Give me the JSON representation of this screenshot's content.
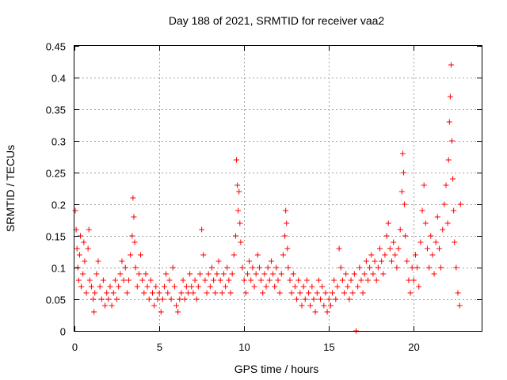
{
  "chart_data": {
    "type": "scatter",
    "title": "Day 188 of 2021, SRMTID for receiver vaa2",
    "xlabel": "GPS time / hours",
    "ylabel": "SRMTID / TECUs",
    "xlim": [
      0,
      24
    ],
    "ylim": [
      0,
      0.45
    ],
    "xticks": [
      0,
      5,
      10,
      15,
      20
    ],
    "yticks": [
      0,
      0.05,
      0.1,
      0.15,
      0.2,
      0.25,
      0.3,
      0.35,
      0.4,
      0.45
    ],
    "ytick_labels": [
      "0",
      "0.05",
      "0.1",
      "0.15",
      "0.2",
      "0.25",
      "0.3",
      "0.35",
      "0.4",
      "0.45"
    ],
    "grid": true,
    "marker": "+",
    "series": [
      {
        "name": "SRMTID",
        "color": "#ff0000",
        "points": [
          [
            0.05,
            0.19
          ],
          [
            0.1,
            0.16
          ],
          [
            0.15,
            0.13
          ],
          [
            0.2,
            0.1
          ],
          [
            0.25,
            0.08
          ],
          [
            0.3,
            0.12
          ],
          [
            0.35,
            0.15
          ],
          [
            0.4,
            0.07
          ],
          [
            0.5,
            0.09
          ],
          [
            0.55,
            0.14
          ],
          [
            0.6,
            0.11
          ],
          [
            0.7,
            0.06
          ],
          [
            0.8,
            0.13
          ],
          [
            0.85,
            0.16
          ],
          [
            0.9,
            0.08
          ],
          [
            1.0,
            0.07
          ],
          [
            1.1,
            0.05
          ],
          [
            1.15,
            0.03
          ],
          [
            1.2,
            0.06
          ],
          [
            1.3,
            0.09
          ],
          [
            1.4,
            0.11
          ],
          [
            1.5,
            0.07
          ],
          [
            1.6,
            0.05
          ],
          [
            1.7,
            0.08
          ],
          [
            1.8,
            0.04
          ],
          [
            1.9,
            0.06
          ],
          [
            2.0,
            0.05
          ],
          [
            2.1,
            0.07
          ],
          [
            2.2,
            0.04
          ],
          [
            2.3,
            0.06
          ],
          [
            2.4,
            0.08
          ],
          [
            2.5,
            0.05
          ],
          [
            2.6,
            0.07
          ],
          [
            2.7,
            0.09
          ],
          [
            2.8,
            0.11
          ],
          [
            2.9,
            0.08
          ],
          [
            3.0,
            0.1
          ],
          [
            3.1,
            0.06
          ],
          [
            3.2,
            0.08
          ],
          [
            3.3,
            0.12
          ],
          [
            3.4,
            0.15
          ],
          [
            3.45,
            0.21
          ],
          [
            3.5,
            0.18
          ],
          [
            3.55,
            0.14
          ],
          [
            3.6,
            0.1
          ],
          [
            3.7,
            0.07
          ],
          [
            3.8,
            0.09
          ],
          [
            3.9,
            0.12
          ],
          [
            4.0,
            0.08
          ],
          [
            4.1,
            0.06
          ],
          [
            4.2,
            0.09
          ],
          [
            4.3,
            0.07
          ],
          [
            4.4,
            0.05
          ],
          [
            4.5,
            0.08
          ],
          [
            4.6,
            0.06
          ],
          [
            4.7,
            0.04
          ],
          [
            4.8,
            0.07
          ],
          [
            4.9,
            0.05
          ],
          [
            5.0,
            0.06
          ],
          [
            5.1,
            0.03
          ],
          [
            5.2,
            0.05
          ],
          [
            5.3,
            0.07
          ],
          [
            5.4,
            0.09
          ],
          [
            5.5,
            0.06
          ],
          [
            5.6,
            0.08
          ],
          [
            5.7,
            0.05
          ],
          [
            5.8,
            0.1
          ],
          [
            5.9,
            0.07
          ],
          [
            6.0,
            0.04
          ],
          [
            6.1,
            0.03
          ],
          [
            6.2,
            0.05
          ],
          [
            6.3,
            0.06
          ],
          [
            6.4,
            0.08
          ],
          [
            6.5,
            0.05
          ],
          [
            6.6,
            0.07
          ],
          [
            6.7,
            0.06
          ],
          [
            6.8,
            0.09
          ],
          [
            6.9,
            0.07
          ],
          [
            7.0,
            0.06
          ],
          [
            7.1,
            0.08
          ],
          [
            7.2,
            0.05
          ],
          [
            7.3,
            0.07
          ],
          [
            7.4,
            0.09
          ],
          [
            7.5,
            0.16
          ],
          [
            7.6,
            0.12
          ],
          [
            7.7,
            0.08
          ],
          [
            7.8,
            0.06
          ],
          [
            7.9,
            0.09
          ],
          [
            8.0,
            0.07
          ],
          [
            8.1,
            0.1
          ],
          [
            8.2,
            0.08
          ],
          [
            8.3,
            0.06
          ],
          [
            8.4,
            0.09
          ],
          [
            8.5,
            0.11
          ],
          [
            8.6,
            0.08
          ],
          [
            8.7,
            0.06
          ],
          [
            8.8,
            0.09
          ],
          [
            8.9,
            0.07
          ],
          [
            9.0,
            0.1
          ],
          [
            9.1,
            0.08
          ],
          [
            9.2,
            0.06
          ],
          [
            9.3,
            0.09
          ],
          [
            9.4,
            0.12
          ],
          [
            9.5,
            0.15
          ],
          [
            9.55,
            0.27
          ],
          [
            9.6,
            0.23
          ],
          [
            9.65,
            0.19
          ],
          [
            9.7,
            0.22
          ],
          [
            9.75,
            0.17
          ],
          [
            9.8,
            0.14
          ],
          [
            9.9,
            0.1
          ],
          [
            10.0,
            0.08
          ],
          [
            10.1,
            0.06
          ],
          [
            10.2,
            0.09
          ],
          [
            10.3,
            0.11
          ],
          [
            10.4,
            0.08
          ],
          [
            10.5,
            0.1
          ],
          [
            10.6,
            0.07
          ],
          [
            10.7,
            0.09
          ],
          [
            10.8,
            0.12
          ],
          [
            10.9,
            0.1
          ],
          [
            11.0,
            0.08
          ],
          [
            11.1,
            0.06
          ],
          [
            11.2,
            0.09
          ],
          [
            11.3,
            0.07
          ],
          [
            11.4,
            0.1
          ],
          [
            11.5,
            0.08
          ],
          [
            11.6,
            0.11
          ],
          [
            11.7,
            0.09
          ],
          [
            11.8,
            0.07
          ],
          [
            11.9,
            0.1
          ],
          [
            12.0,
            0.08
          ],
          [
            12.1,
            0.06
          ],
          [
            12.2,
            0.09
          ],
          [
            12.3,
            0.12
          ],
          [
            12.4,
            0.15
          ],
          [
            12.45,
            0.19
          ],
          [
            12.5,
            0.17
          ],
          [
            12.55,
            0.13
          ],
          [
            12.6,
            0.1
          ],
          [
            12.7,
            0.08
          ],
          [
            12.8,
            0.06
          ],
          [
            12.9,
            0.09
          ],
          [
            13.0,
            0.07
          ],
          [
            13.1,
            0.05
          ],
          [
            13.2,
            0.08
          ],
          [
            13.3,
            0.06
          ],
          [
            13.4,
            0.04
          ],
          [
            13.5,
            0.07
          ],
          [
            13.6,
            0.05
          ],
          [
            13.7,
            0.08
          ],
          [
            13.8,
            0.06
          ],
          [
            13.9,
            0.04
          ],
          [
            14.0,
            0.07
          ],
          [
            14.1,
            0.05
          ],
          [
            14.2,
            0.03
          ],
          [
            14.3,
            0.06
          ],
          [
            14.4,
            0.08
          ],
          [
            14.5,
            0.05
          ],
          [
            14.6,
            0.07
          ],
          [
            14.7,
            0.04
          ],
          [
            14.8,
            0.06
          ],
          [
            14.9,
            0.03
          ],
          [
            15.0,
            0.05
          ],
          [
            15.1,
            0.04
          ],
          [
            15.2,
            0.06
          ],
          [
            15.3,
            0.08
          ],
          [
            15.4,
            0.05
          ],
          [
            15.5,
            0.07
          ],
          [
            15.6,
            0.13
          ],
          [
            15.7,
            0.1
          ],
          [
            15.8,
            0.08
          ],
          [
            15.9,
            0.06
          ],
          [
            16.0,
            0.09
          ],
          [
            16.1,
            0.07
          ],
          [
            16.2,
            0.05
          ],
          [
            16.3,
            0.08
          ],
          [
            16.4,
            0.06
          ],
          [
            16.5,
            0.09
          ],
          [
            16.6,
            0.0
          ],
          [
            16.7,
            0.07
          ],
          [
            16.8,
            0.1
          ],
          [
            16.9,
            0.08
          ],
          [
            17.0,
            0.06
          ],
          [
            17.1,
            0.09
          ],
          [
            17.2,
            0.11
          ],
          [
            17.3,
            0.08
          ],
          [
            17.4,
            0.1
          ],
          [
            17.5,
            0.12
          ],
          [
            17.6,
            0.09
          ],
          [
            17.7,
            0.11
          ],
          [
            17.8,
            0.08
          ],
          [
            17.9,
            0.1
          ],
          [
            18.0,
            0.13
          ],
          [
            18.1,
            0.11
          ],
          [
            18.2,
            0.09
          ],
          [
            18.3,
            0.12
          ],
          [
            18.4,
            0.15
          ],
          [
            18.5,
            0.17
          ],
          [
            18.6,
            0.13
          ],
          [
            18.7,
            0.11
          ],
          [
            18.8,
            0.14
          ],
          [
            18.9,
            0.12
          ],
          [
            19.0,
            0.1
          ],
          [
            19.1,
            0.13
          ],
          [
            19.2,
            0.16
          ],
          [
            19.3,
            0.22
          ],
          [
            19.35,
            0.28
          ],
          [
            19.4,
            0.25
          ],
          [
            19.45,
            0.2
          ],
          [
            19.5,
            0.15
          ],
          [
            19.6,
            0.11
          ],
          [
            19.7,
            0.08
          ],
          [
            19.8,
            0.06
          ],
          [
            19.9,
            0.1
          ],
          [
            20.0,
            0.08
          ],
          [
            20.1,
            0.12
          ],
          [
            20.2,
            0.1
          ],
          [
            20.3,
            0.07
          ],
          [
            20.4,
            0.14
          ],
          [
            20.5,
            0.19
          ],
          [
            20.6,
            0.23
          ],
          [
            20.7,
            0.17
          ],
          [
            20.8,
            0.13
          ],
          [
            20.9,
            0.1
          ],
          [
            21.0,
            0.15
          ],
          [
            21.1,
            0.12
          ],
          [
            21.2,
            0.09
          ],
          [
            21.3,
            0.14
          ],
          [
            21.4,
            0.18
          ],
          [
            21.5,
            0.13
          ],
          [
            21.6,
            0.1
          ],
          [
            21.7,
            0.16
          ],
          [
            21.8,
            0.2
          ],
          [
            21.9,
            0.23
          ],
          [
            22.0,
            0.17
          ],
          [
            22.05,
            0.27
          ],
          [
            22.1,
            0.33
          ],
          [
            22.15,
            0.37
          ],
          [
            22.2,
            0.42
          ],
          [
            22.25,
            0.3
          ],
          [
            22.3,
            0.24
          ],
          [
            22.35,
            0.19
          ],
          [
            22.4,
            0.14
          ],
          [
            22.5,
            0.1
          ],
          [
            22.6,
            0.06
          ],
          [
            22.7,
            0.04
          ],
          [
            22.75,
            0.2
          ]
        ]
      }
    ]
  }
}
